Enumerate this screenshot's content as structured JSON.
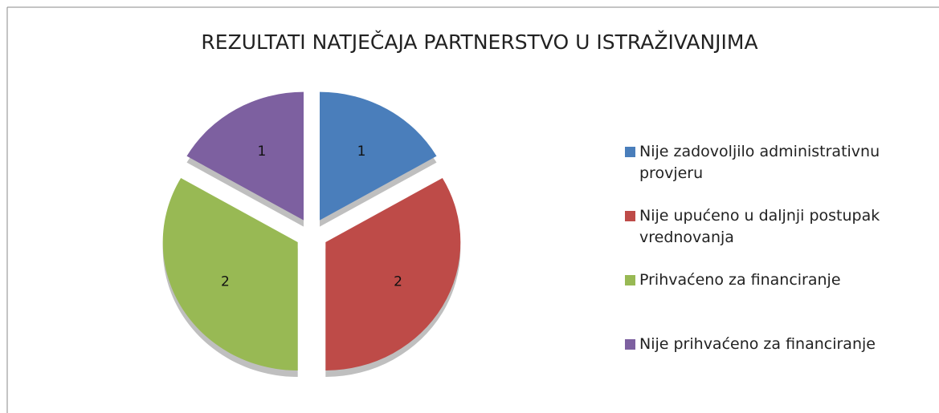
{
  "chart_data": {
    "type": "pie",
    "title": "REZULTATI NATJEČAJA PARTNERSTVO U ISTRAŽIVANJIMA",
    "categories": [
      "Nije zadovoljilo administrativnu provjeru",
      "Nije upućeno u daljnji postupak vrednovanja",
      "Prihvaćeno za financiranje",
      "Nije prihvaćeno za financiranje"
    ],
    "values": [
      1,
      2,
      2,
      1
    ],
    "colors": [
      "#4a7ebb",
      "#be4b48",
      "#98b954",
      "#7d60a0"
    ],
    "legend": "right"
  }
}
